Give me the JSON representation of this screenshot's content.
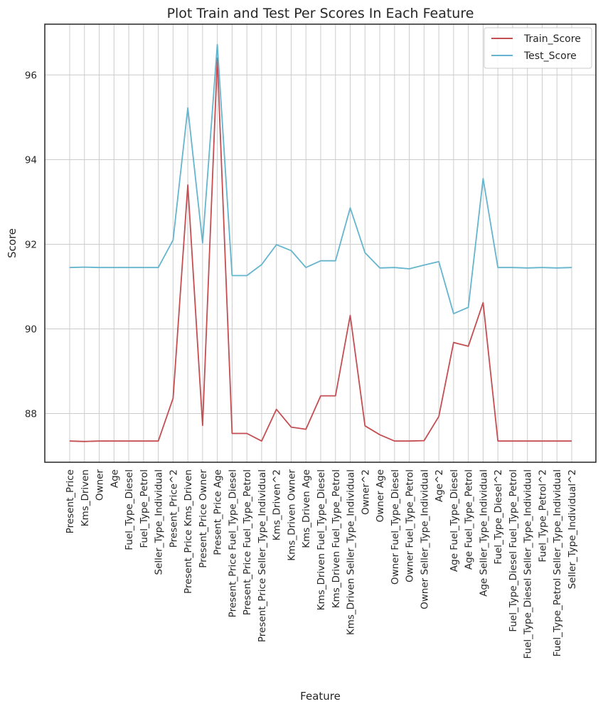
{
  "chart_data": {
    "type": "line",
    "title": "Plot Train and Test Per Scores In Each Feature",
    "xlabel": "Feature",
    "ylabel": "Score",
    "ylim": [
      86.85,
      97.2
    ],
    "yticks": [
      88,
      90,
      92,
      94,
      96
    ],
    "grid": true,
    "legend_position": "top-right",
    "categories": [
      "Present_Price",
      "Kms_Driven",
      "Owner",
      "Age",
      "Fuel_Type_Diesel",
      "Fuel_Type_Petrol",
      "Seller_Type_Individual",
      "Present_Price^2",
      "Present_Price Kms_Driven",
      "Present_Price Owner",
      "Present_Price Age",
      "Present_Price Fuel_Type_Diesel",
      "Present_Price Fuel_Type_Petrol",
      "Present_Price Seller_Type_Individual",
      "Kms_Driven^2",
      "Kms_Driven Owner",
      "Kms_Driven Age",
      "Kms_Driven Fuel_Type_Diesel",
      "Kms_Driven Fuel_Type_Petrol",
      "Kms_Driven Seller_Type_Individual",
      "Owner^2",
      "Owner Age",
      "Owner Fuel_Type_Diesel",
      "Owner Fuel_Type_Petrol",
      "Owner Seller_Type_Individual",
      "Age^2",
      "Age Fuel_Type_Diesel",
      "Age Fuel_Type_Petrol",
      "Age Seller_Type_Individual",
      "Fuel_Type_Diesel^2",
      "Fuel_Type_Diesel Fuel_Type_Petrol",
      "Fuel_Type_Diesel Seller_Type_Individual",
      "Fuel_Type_Petrol^2",
      "Fuel_Type_Petrol Seller_Type_Individual",
      "Seller_Type_Individual^2"
    ],
    "series": [
      {
        "name": "Train_Score",
        "color": "#c44e52",
        "values": [
          87.35,
          87.34,
          87.35,
          87.35,
          87.35,
          87.35,
          87.35,
          88.36,
          93.4,
          87.72,
          96.4,
          87.53,
          87.53,
          87.35,
          88.1,
          87.68,
          87.63,
          88.42,
          88.42,
          90.32,
          87.71,
          87.5,
          87.35,
          87.35,
          87.36,
          87.93,
          89.68,
          89.59,
          90.62,
          87.35,
          87.35,
          87.35,
          87.35,
          87.35,
          87.35
        ]
      },
      {
        "name": "Test_Score",
        "color": "#64b5cd",
        "values": [
          91.45,
          91.46,
          91.45,
          91.45,
          91.45,
          91.45,
          91.45,
          92.1,
          95.22,
          92.03,
          96.72,
          91.26,
          91.26,
          91.52,
          91.99,
          91.85,
          91.45,
          91.61,
          91.61,
          92.86,
          91.8,
          91.44,
          91.45,
          91.42,
          91.51,
          91.59,
          90.36,
          90.51,
          93.55,
          91.45,
          91.45,
          91.44,
          91.45,
          91.44,
          91.45
        ]
      }
    ]
  }
}
